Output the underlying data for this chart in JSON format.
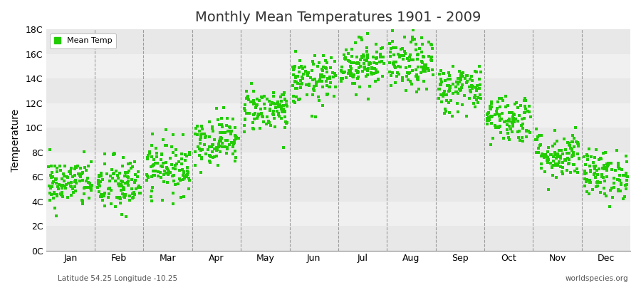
{
  "title": "Monthly Mean Temperatures 1901 - 2009",
  "ylabel": "Temperature",
  "xlabel_bottom_left": "Latitude 54.25 Longitude -10.25",
  "xlabel_bottom_right": "worldspecies.org",
  "legend_label": "Mean Temp",
  "dot_color": "#22CC00",
  "dot_size": 12,
  "background_color": "#FFFFFF",
  "band_colors": [
    "#E8E8E8",
    "#F0F0F0"
  ],
  "ytick_labels": [
    "0C",
    "2C",
    "4C",
    "6C",
    "8C",
    "10C",
    "12C",
    "14C",
    "16C",
    "18C"
  ],
  "ytick_values": [
    0,
    2,
    4,
    6,
    8,
    10,
    12,
    14,
    16,
    18
  ],
  "months": [
    "Jan",
    "Feb",
    "Mar",
    "Apr",
    "May",
    "Jun",
    "Jul",
    "Aug",
    "Sep",
    "Oct",
    "Nov",
    "Dec"
  ],
  "ylim": [
    0,
    18
  ],
  "num_years": 109,
  "seed": 42,
  "monthly_means": [
    5.5,
    5.3,
    6.8,
    9.0,
    11.5,
    13.8,
    15.2,
    15.1,
    13.2,
    10.8,
    7.8,
    6.2
  ],
  "monthly_stds": [
    1.0,
    1.2,
    1.1,
    1.0,
    0.9,
    1.0,
    1.0,
    1.1,
    1.0,
    1.0,
    1.0,
    1.0
  ]
}
